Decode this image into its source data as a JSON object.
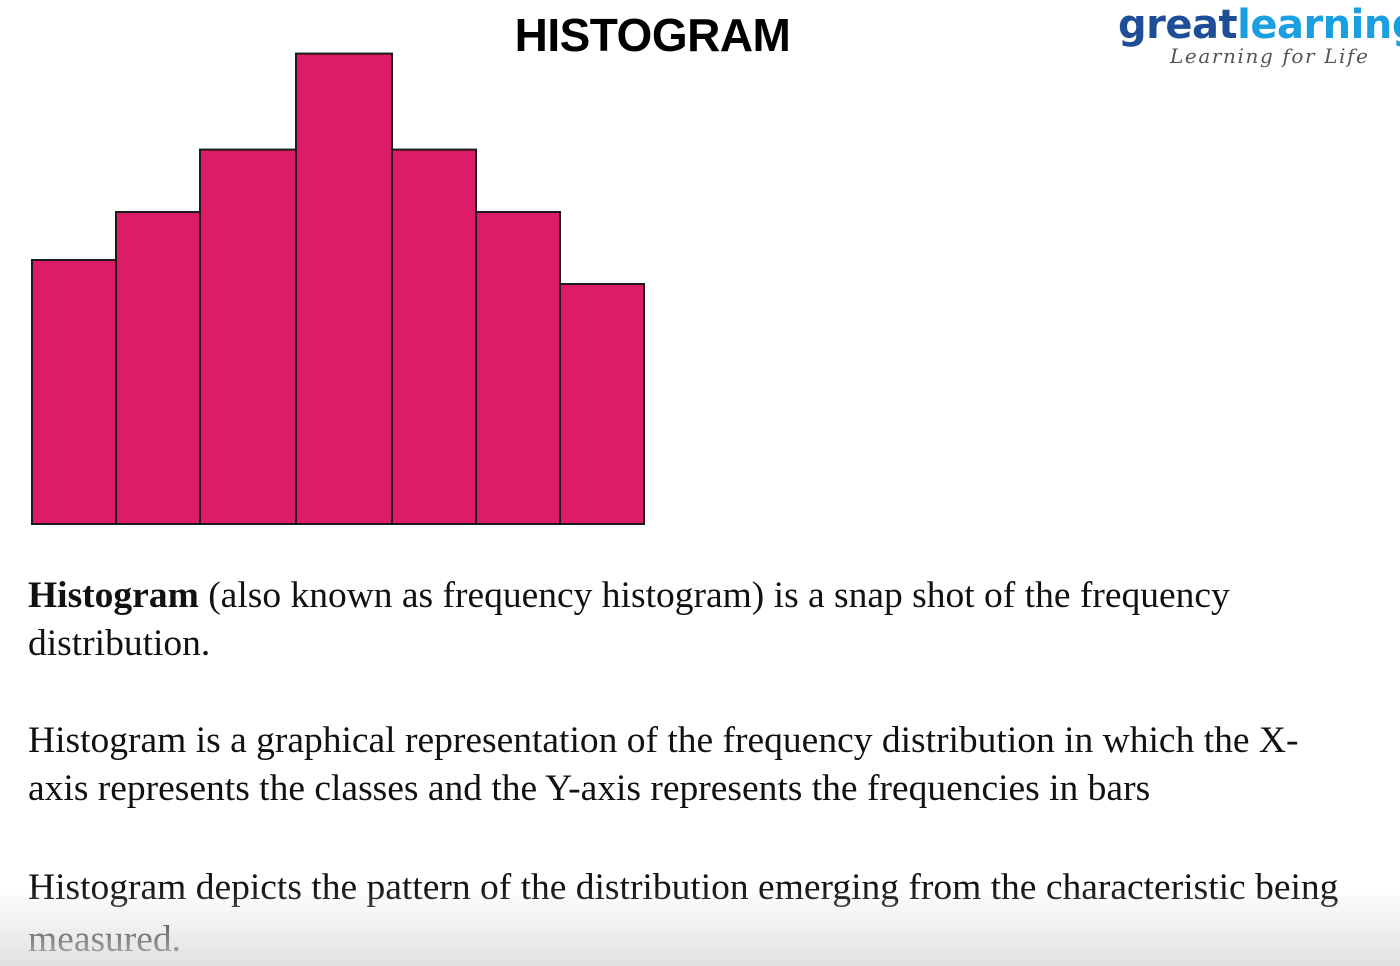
{
  "title": "HISTOGRAM",
  "logo": {
    "part1": "great",
    "part2": "learning",
    "tagline": "Learning for Life",
    "color1": "#1f4e99",
    "color2": "#1aa0e0"
  },
  "chart_data": {
    "type": "bar",
    "categories": [
      "",
      "",
      "",
      "",
      "",
      "",
      ""
    ],
    "values": [
      55,
      65,
      78,
      98,
      78,
      65,
      50
    ],
    "ylim": [
      0,
      100
    ],
    "title": "",
    "xlabel": "",
    "ylabel": "",
    "grid": false,
    "bar_color": "#dc1c66",
    "edge_color": "#1a1a1a"
  },
  "paragraphs": {
    "p1_term": "Histogram",
    "p1_rest": " (also known as frequency histogram) is a snap shot of the frequency distribution.",
    "p2": "Histogram is a graphical representation of the frequency distribution in which the X-axis represents the classes and the Y-axis represents the frequencies in bars",
    "p3": "Histogram depicts the pattern of the distribution emerging from the characteristic being measured."
  }
}
